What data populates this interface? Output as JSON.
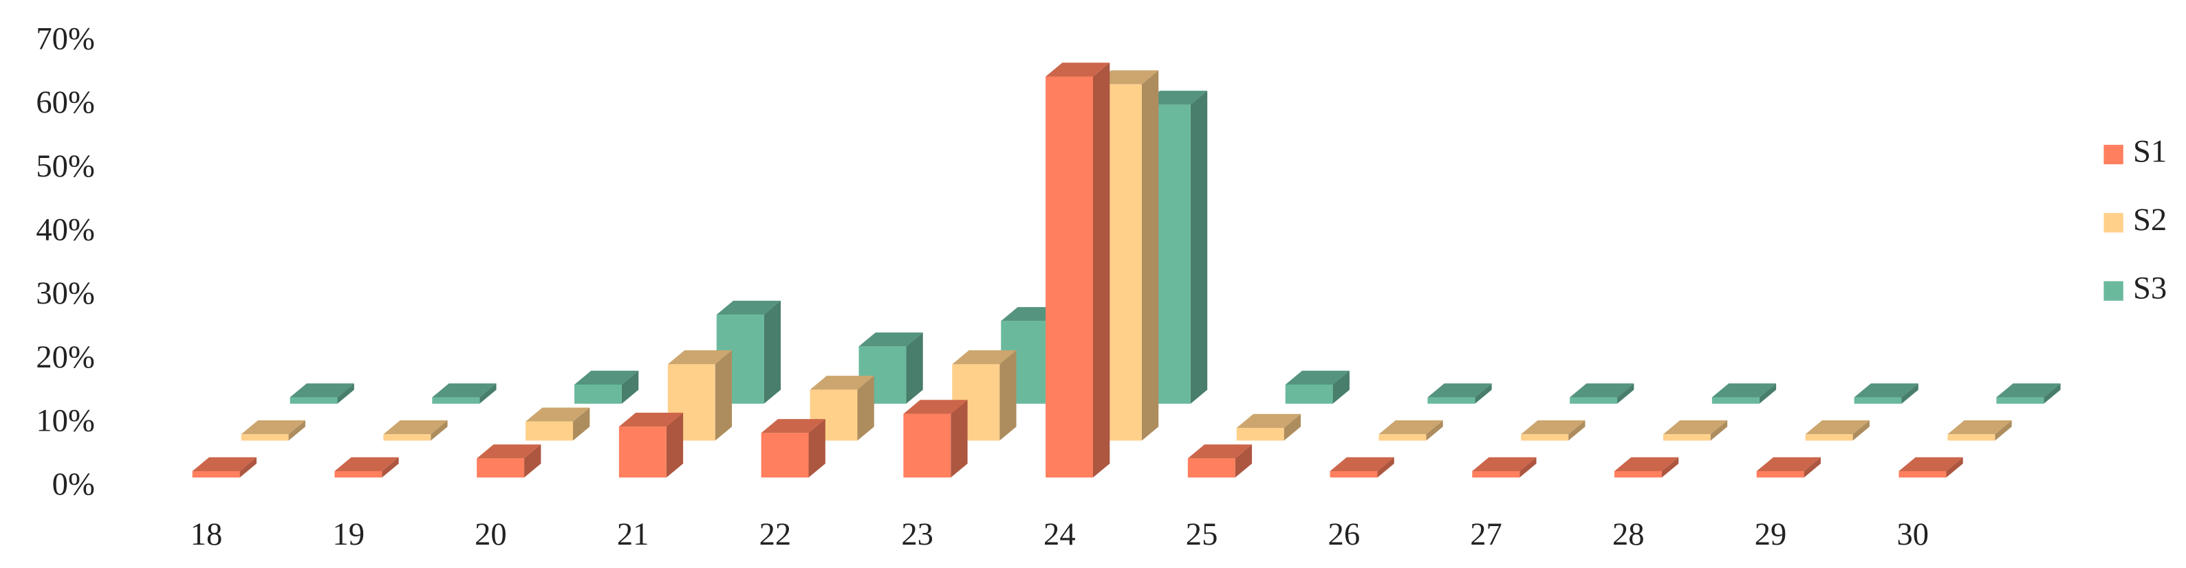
{
  "chart_data": {
    "type": "bar3d",
    "categories": [
      "18",
      "19",
      "20",
      "21",
      "22",
      "23",
      "24",
      "25",
      "26",
      "27",
      "28",
      "29",
      "30"
    ],
    "series": [
      {
        "name": "S1",
        "color": "#ff7f5e",
        "values": [
          1,
          1,
          3,
          8,
          7,
          10,
          63,
          3,
          1,
          1,
          1,
          1,
          1
        ]
      },
      {
        "name": "S2",
        "color": "#ffd08a",
        "values": [
          1,
          1,
          3,
          12,
          8,
          12,
          56,
          2,
          1,
          1,
          1,
          1,
          1
        ]
      },
      {
        "name": "S3",
        "color": "#6ab99d",
        "values": [
          1,
          1,
          3,
          14,
          9,
          13,
          47,
          3,
          1,
          1,
          1,
          1,
          1
        ]
      }
    ],
    "ylim": [
      0,
      70
    ],
    "yticks": [
      {
        "value": 0,
        "label": "0%"
      },
      {
        "value": 10,
        "label": "10%"
      },
      {
        "value": 20,
        "label": "20%"
      },
      {
        "value": 30,
        "label": "30%"
      },
      {
        "value": 40,
        "label": "40%"
      },
      {
        "value": 50,
        "label": "50%"
      },
      {
        "value": 60,
        "label": "60%"
      },
      {
        "value": 70,
        "label": "70%"
      }
    ],
    "grid": false,
    "legend": "right"
  }
}
